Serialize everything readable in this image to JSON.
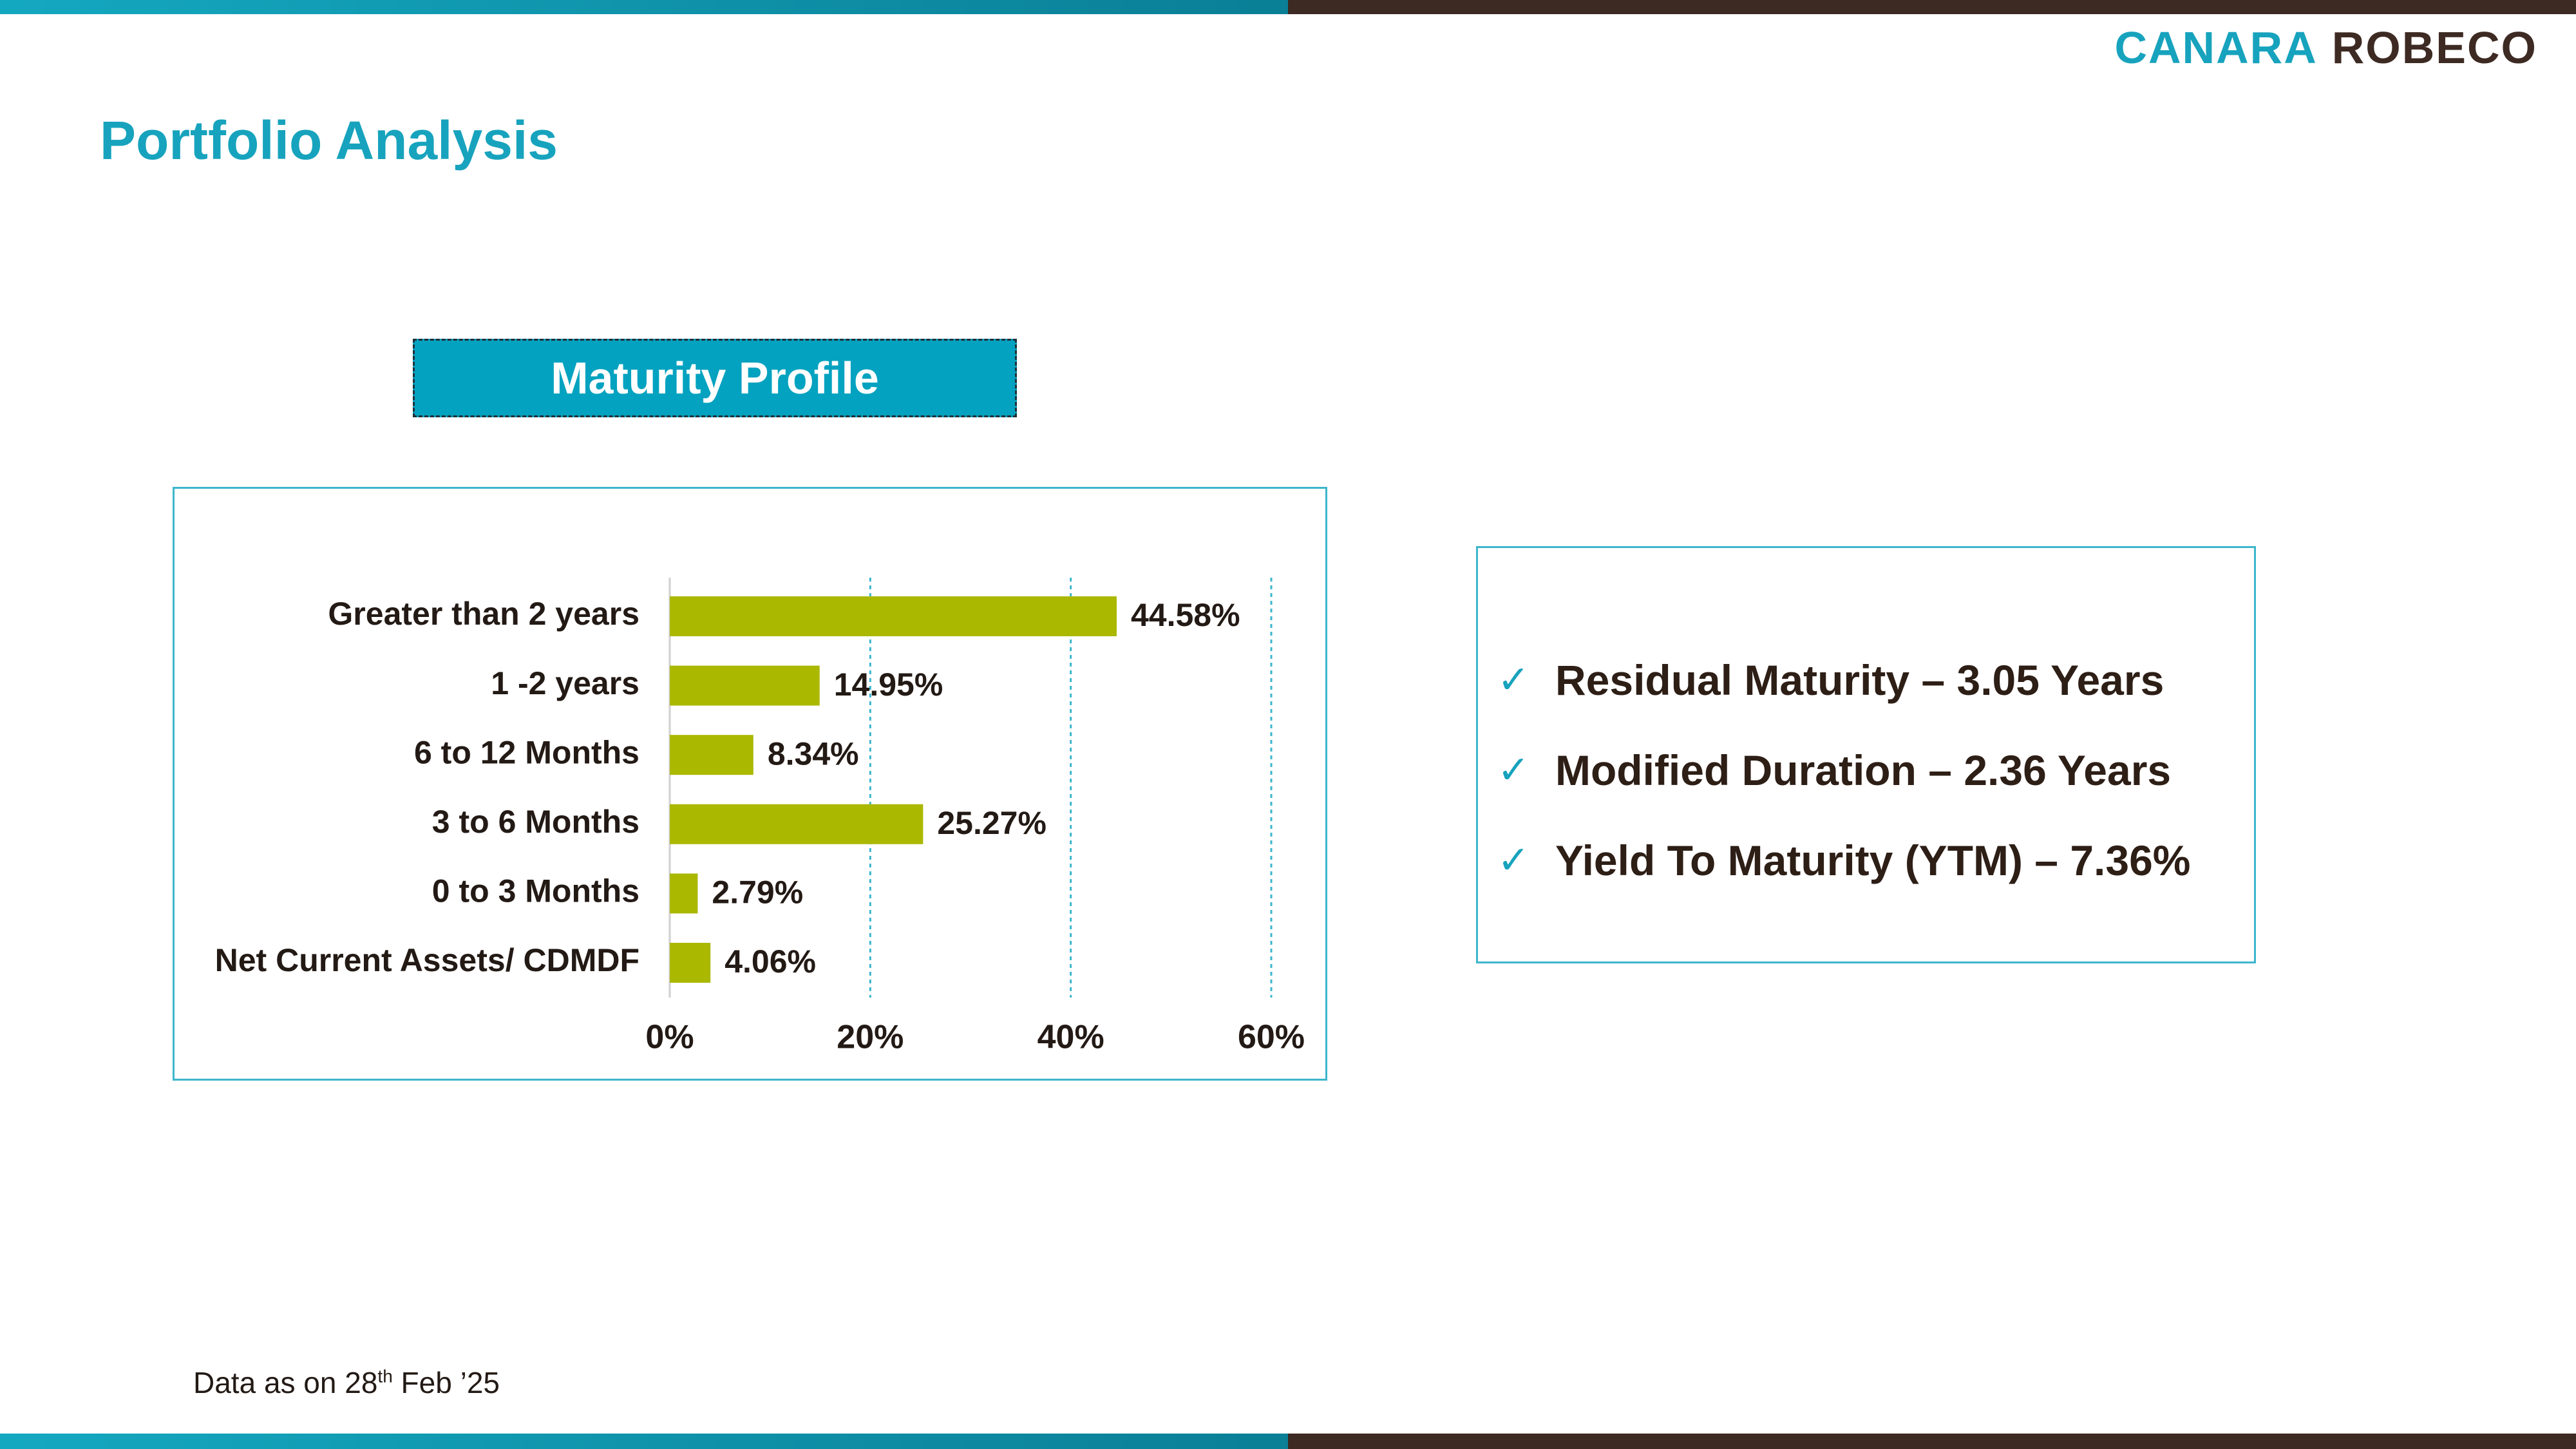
{
  "logo": {
    "part1": "CANARA",
    "part2": "ROBECO"
  },
  "page_title": "Portfolio Analysis",
  "section_header": "Maturity Profile",
  "chart_data": {
    "type": "bar",
    "orientation": "horizontal",
    "categories": [
      "Greater than 2 years",
      "1 -2 years",
      "6 to 12 Months",
      "3 to 6 Months",
      "0 to 3 Months",
      "Net Current Assets/ CDMDF"
    ],
    "values": [
      44.58,
      14.95,
      8.34,
      25.27,
      2.79,
      4.06
    ],
    "value_labels": [
      "44.58%",
      "14.95%",
      "8.34%",
      "25.27%",
      "2.79%",
      "4.06%"
    ],
    "xticks": [
      "0%",
      "20%",
      "40%",
      "60%"
    ],
    "xlim": [
      0,
      60
    ],
    "grid": "vertical dashed",
    "bar_color": "#abb800",
    "grid_color": "#3cb6cc"
  },
  "stats": [
    "Residual Maturity – 3.05 Years",
    "Modified Duration – 2.36 Years",
    "Yield To Maturity (YTM) – 7.36%"
  ],
  "check_icon": "✓",
  "footnote": {
    "prefix": "Data as on 28",
    "sup": "th",
    "suffix": " Feb  ’25"
  }
}
